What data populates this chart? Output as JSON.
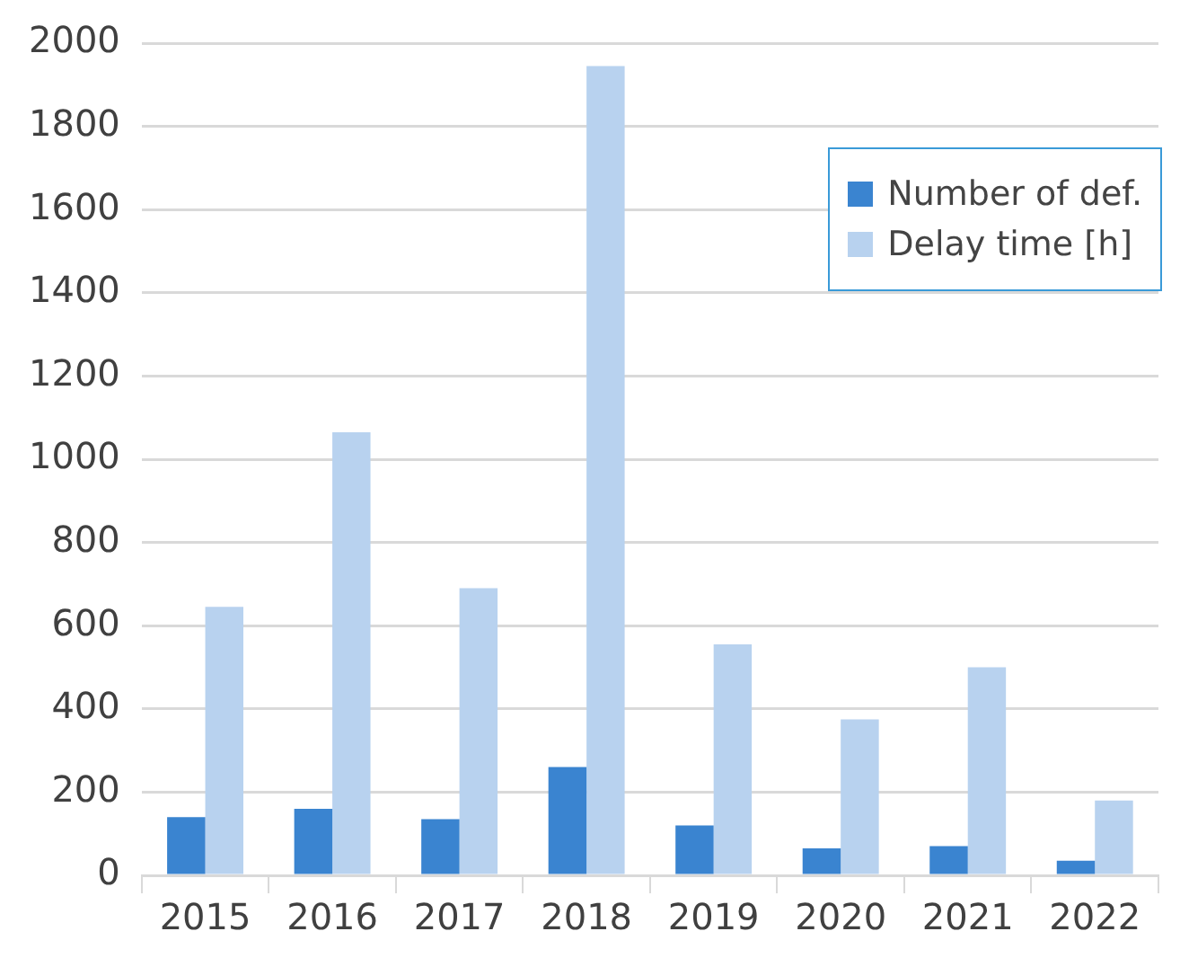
{
  "chart_data": {
    "type": "bar",
    "categories": [
      "2015",
      "2016",
      "2017",
      "2018",
      "2019",
      "2020",
      "2021",
      "2022"
    ],
    "series": [
      {
        "name": "Number of def.",
        "color": "#3a84d0",
        "values": [
          140,
          160,
          135,
          260,
          120,
          65,
          70,
          35
        ]
      },
      {
        "name": "Delay time [h]",
        "color": "#b8d2ef",
        "values": [
          645,
          1065,
          690,
          1945,
          555,
          375,
          500,
          180
        ]
      }
    ],
    "ylim": [
      0,
      2000
    ],
    "yticks": [
      0,
      200,
      400,
      600,
      800,
      1000,
      1200,
      1400,
      1600,
      1800,
      2000
    ],
    "grid": "y",
    "legend": "top right"
  }
}
